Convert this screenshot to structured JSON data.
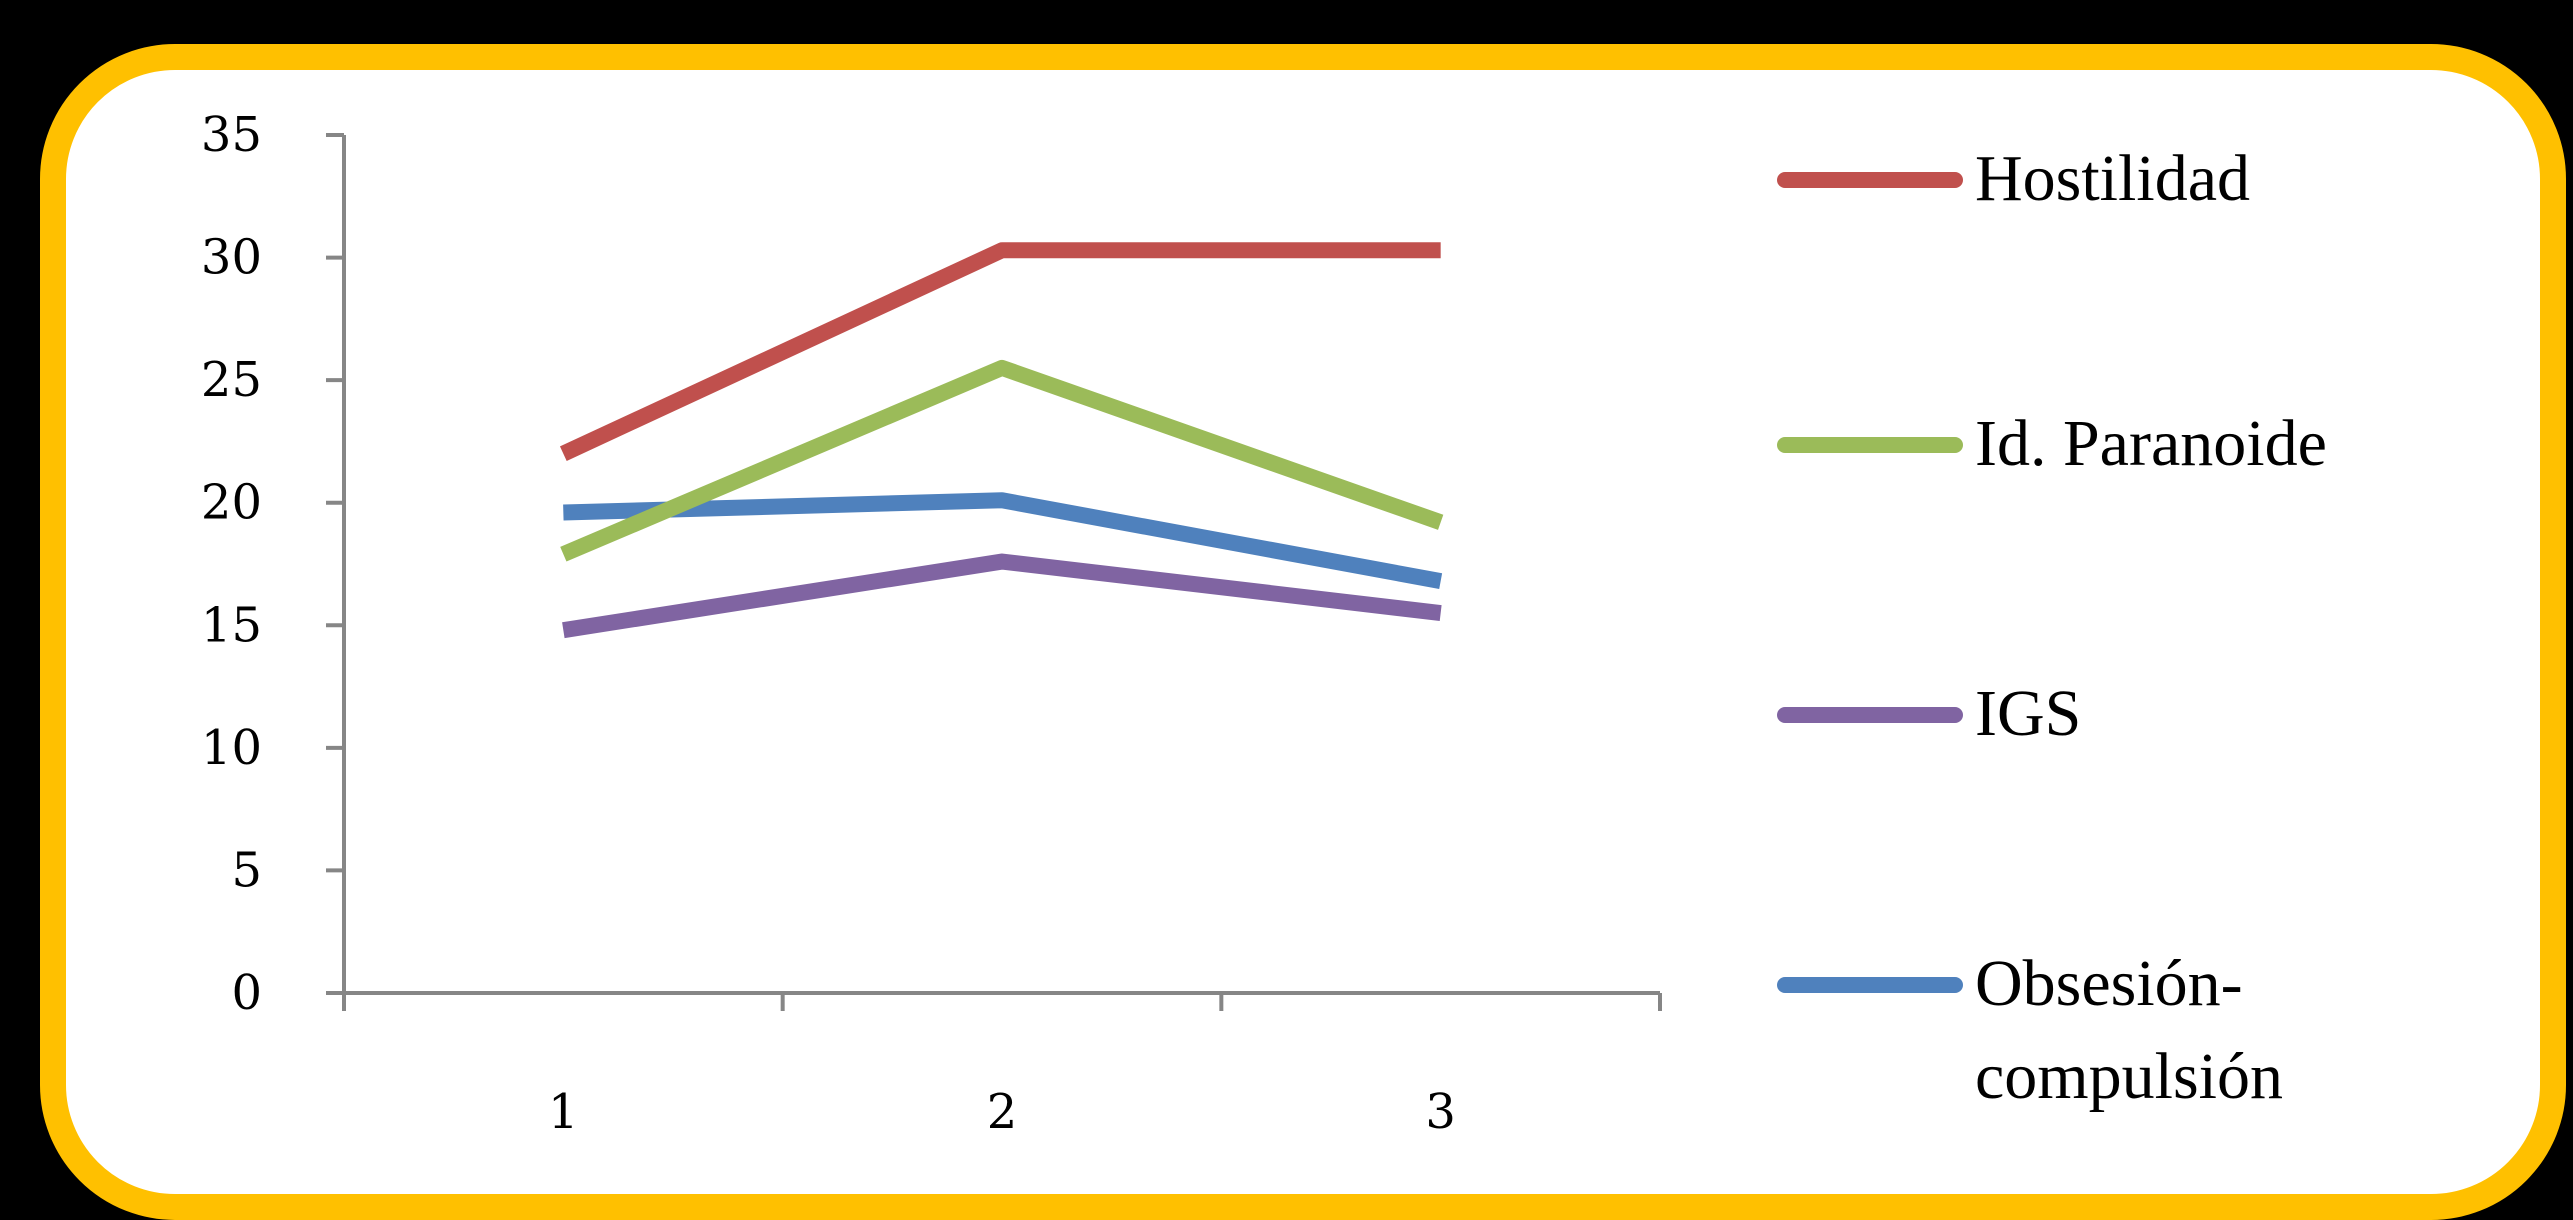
{
  "chart_data": {
    "type": "line",
    "title": "",
    "xlabel": "",
    "ylabel": "",
    "categories": [
      "1",
      "2",
      "3"
    ],
    "ylim": [
      0,
      35
    ],
    "yticks": [
      "0",
      "5",
      "10",
      "15",
      "20",
      "25",
      "30",
      "35"
    ],
    "grid": false,
    "legend_position": "right",
    "series": [
      {
        "name": "Hostilidad",
        "color": "#C0504D",
        "values": [
          22,
          30.3,
          30.3
        ]
      },
      {
        "name": "Id. Paranoide",
        "color": "#9BBB59",
        "values": [
          17.9,
          25.5,
          19.2
        ]
      },
      {
        "name": "IGS",
        "color": "#8064A2",
        "values": [
          14.8,
          17.6,
          15.5
        ]
      },
      {
        "name": "Obsesión-compulsión",
        "legend_lines": [
          "Obsesión-",
          "compulsión"
        ],
        "color": "#4F81BD",
        "values": [
          19.6,
          20.1,
          16.8
        ]
      }
    ]
  }
}
